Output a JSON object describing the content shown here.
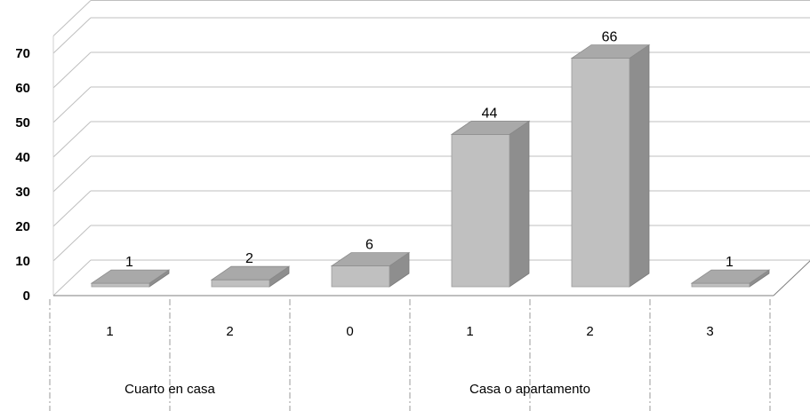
{
  "chart_data": {
    "type": "bar",
    "categories": [
      "1",
      "2",
      "0",
      "1",
      "2",
      "3"
    ],
    "groups": [
      {
        "label": "Cuarto en casa",
        "span": 2
      },
      {
        "label": "Casa o apartamento",
        "span": 4
      }
    ],
    "values": [
      1,
      2,
      6,
      44,
      66,
      1
    ],
    "data_labels": [
      "1",
      "2",
      "6",
      "44",
      "66",
      "1"
    ],
    "ylim": [
      0,
      70
    ],
    "yticks": [
      "0",
      "10",
      "20",
      "30",
      "40",
      "50",
      "60",
      "70"
    ],
    "grid": true,
    "style": "3d-column",
    "colors": {
      "front": "#c0c0c0",
      "top": "#a9a9a9",
      "side": "#8e8e8e",
      "grid": "#bfbfbf",
      "divider": "#9a9a9a"
    }
  }
}
